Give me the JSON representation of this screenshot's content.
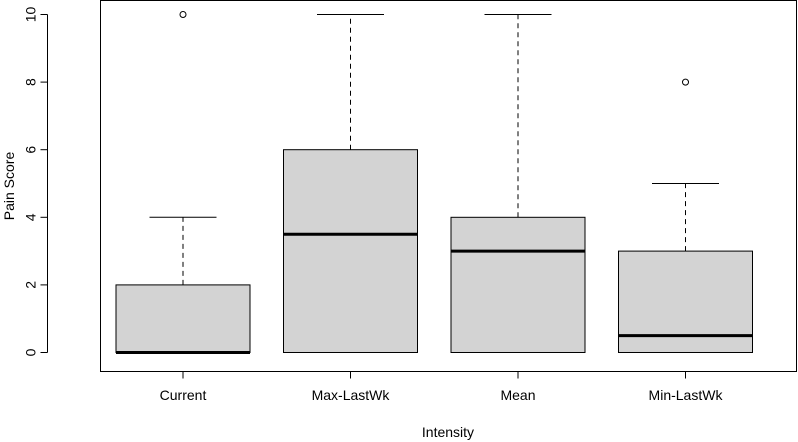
{
  "chart_data": {
    "type": "boxplot",
    "title": "",
    "xlabel": "Intensity",
    "ylabel": "Pain Score",
    "ylim": [
      0,
      10
    ],
    "yticks": [
      0,
      2,
      4,
      6,
      8,
      10
    ],
    "ytick_labels": [
      "0",
      "2",
      "4",
      "6",
      "8",
      "10"
    ],
    "categories": [
      "Current",
      "Max-LastWk",
      "Mean",
      "Min-LastWk"
    ],
    "boxes": [
      {
        "name": "Current",
        "whisker_low": 0,
        "q1": 0,
        "median": 0,
        "q3": 2,
        "whisker_high": 4,
        "outliers": [
          10
        ]
      },
      {
        "name": "Max-LastWk",
        "whisker_low": 0,
        "q1": 0,
        "median": 3.5,
        "q3": 6,
        "whisker_high": 10,
        "outliers": []
      },
      {
        "name": "Mean",
        "whisker_low": 0,
        "q1": 0,
        "median": 3,
        "q3": 4,
        "whisker_high": 10,
        "outliers": []
      },
      {
        "name": "Min-LastWk",
        "whisker_low": 0,
        "q1": 0,
        "median": 0.5,
        "q3": 3,
        "whisker_high": 5,
        "outliers": [
          8
        ]
      }
    ],
    "box_fill": "#d3d3d3",
    "line_color": "#000000"
  }
}
